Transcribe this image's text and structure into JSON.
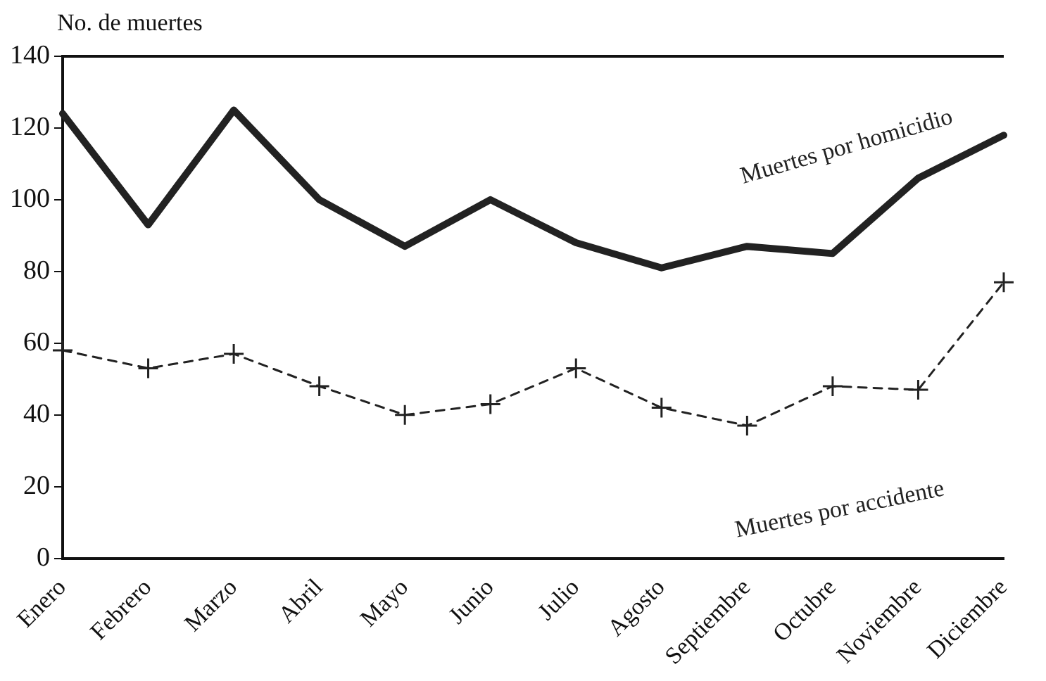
{
  "chart_data": {
    "type": "line",
    "ylabel": "No. de muertes",
    "categories": [
      "Enero",
      "Febrero",
      "Marzo",
      "Abril",
      "Mayo",
      "Junio",
      "Julio",
      "Agosto",
      "Septiembre",
      "Octubre",
      "Noviembre",
      "Diciembre"
    ],
    "series": [
      {
        "name": "Muertes por homicidio",
        "color": "#222222",
        "line_style": "solid",
        "marker": "none",
        "values": [
          124,
          93,
          125,
          100,
          87,
          100,
          88,
          81,
          87,
          85,
          106,
          118
        ]
      },
      {
        "name": "Muertes por accidente",
        "color": "#222222",
        "line_style": "dashed",
        "marker": "cross",
        "values": [
          58,
          53,
          57,
          48,
          40,
          43,
          53,
          42,
          37,
          48,
          47,
          77
        ]
      }
    ],
    "ylim": [
      0,
      140
    ],
    "yticks": [
      0,
      20,
      40,
      60,
      80,
      100,
      120,
      140
    ],
    "grid": false,
    "legend": false
  }
}
